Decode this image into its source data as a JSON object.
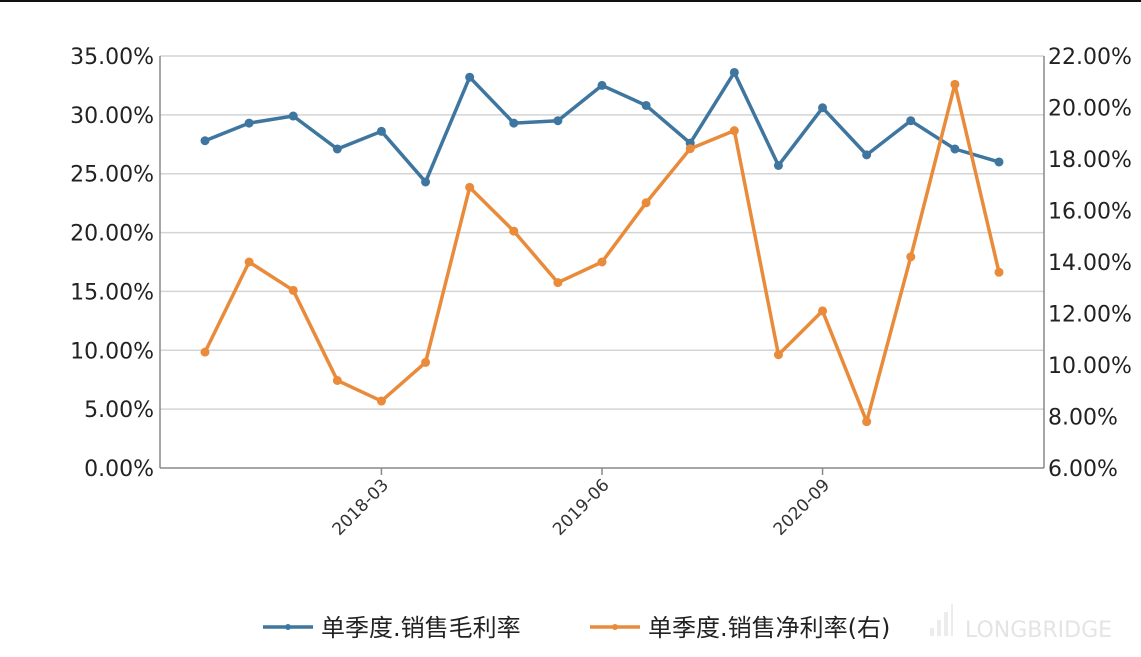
{
  "chart_data": {
    "type": "line",
    "x": [
      "2017-03",
      "2017-06",
      "2017-09",
      "2017-12",
      "2018-03",
      "2018-06",
      "2018-09",
      "2018-12",
      "2019-03",
      "2019-06",
      "2019-09",
      "2019-12",
      "2020-03",
      "2020-06",
      "2020-09",
      "2020-12",
      "2021-03",
      "2021-06",
      "2021-09"
    ],
    "x_tick_labels": [
      "2018-03",
      "2019-06",
      "2020-09"
    ],
    "x_tick_values": [
      "2018-03",
      "2019-06",
      "2020-09"
    ],
    "y_left": {
      "range": [
        0,
        35
      ],
      "ticks": [
        "0.00%",
        "5.00%",
        "10.00%",
        "15.00%",
        "20.00%",
        "25.00%",
        "30.00%",
        "35.00%"
      ]
    },
    "y_right": {
      "range": [
        6,
        22
      ],
      "ticks": [
        "6.00%",
        "8.00%",
        "10.00%",
        "12.00%",
        "14.00%",
        "16.00%",
        "18.00%",
        "20.00%",
        "22.00%"
      ]
    },
    "grid": true,
    "legend_position": "bottom",
    "series": [
      {
        "name": "单季度.销售毛利率",
        "axis": "left",
        "color": "#3f76a0",
        "values": [
          27.8,
          29.3,
          29.9,
          27.1,
          28.6,
          24.3,
          33.2,
          29.3,
          29.5,
          32.5,
          30.8,
          27.6,
          33.6,
          25.7,
          30.6,
          26.6,
          29.5,
          27.1,
          26.0
        ]
      },
      {
        "name": "单季度.销售净利率(右)",
        "axis": "right",
        "color": "#e98b3a",
        "values": [
          10.5,
          14.0,
          12.9,
          9.4,
          8.6,
          10.1,
          16.9,
          15.2,
          13.2,
          14.0,
          16.3,
          18.4,
          19.1,
          10.4,
          12.1,
          7.8,
          14.2,
          20.9,
          13.6
        ]
      }
    ]
  },
  "watermark": "LONGBRIDGE"
}
